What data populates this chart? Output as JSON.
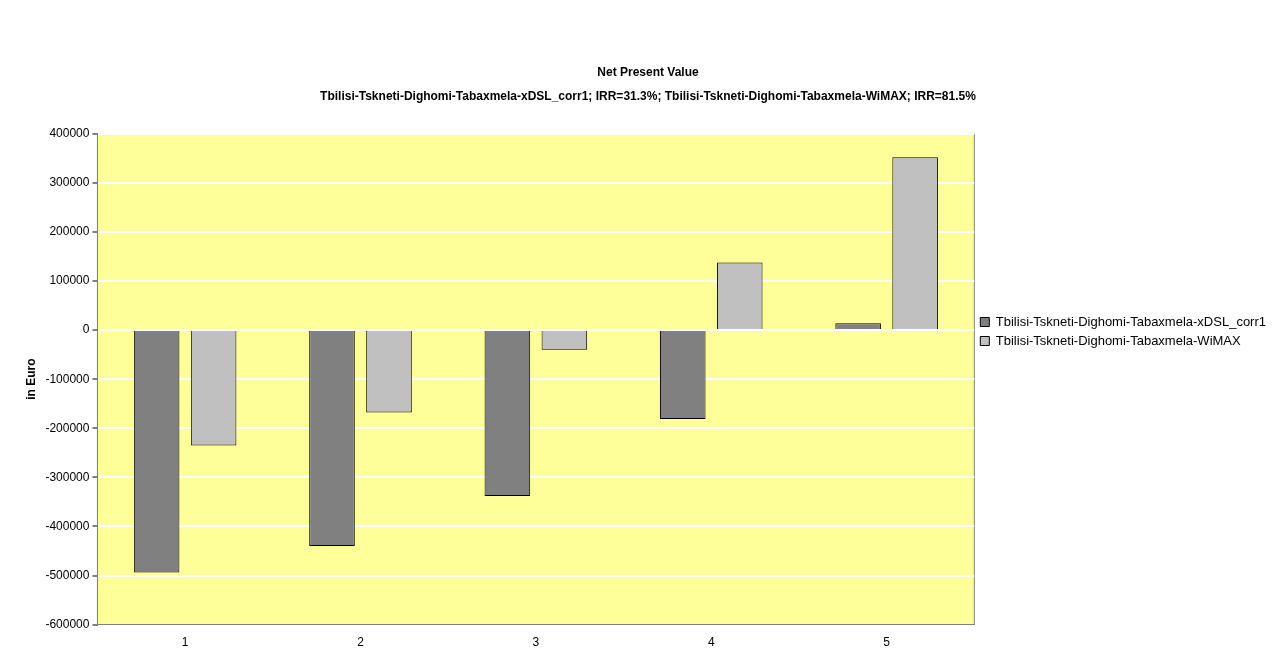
{
  "chart_data": {
    "type": "bar",
    "title": "Net Present Value",
    "subtitle": "Tbilisi-Tskneti-Dighomi-Tabaxmela-xDSL_corr1; IRR=31.3%; Tbilisi-Tskneti-Dighomi-Tabaxmela-WiMAX; IRR=81.5%",
    "ylabel": "in Euro",
    "categories": [
      "1",
      "2",
      "3",
      "4",
      "5"
    ],
    "series": [
      {
        "name": "Tbilisi-Tskneti-Dighomi-Tabaxmela-xDSL_corr1",
        "color": "#808080",
        "values": [
          -494000,
          -440000,
          -338000,
          -181000,
          14000
        ]
      },
      {
        "name": "Tbilisi-Tskneti-Dighomi-Tabaxmela-WiMAX",
        "color": "#c0c0c0",
        "values": [
          -235000,
          -168000,
          -40000,
          138000,
          352000
        ]
      }
    ],
    "ylim": [
      -600000,
      400000
    ],
    "yticks": [
      -600000,
      -500000,
      -400000,
      -300000,
      -200000,
      -100000,
      0,
      100000,
      200000,
      300000,
      400000
    ],
    "grid": "y",
    "legend": "right"
  }
}
